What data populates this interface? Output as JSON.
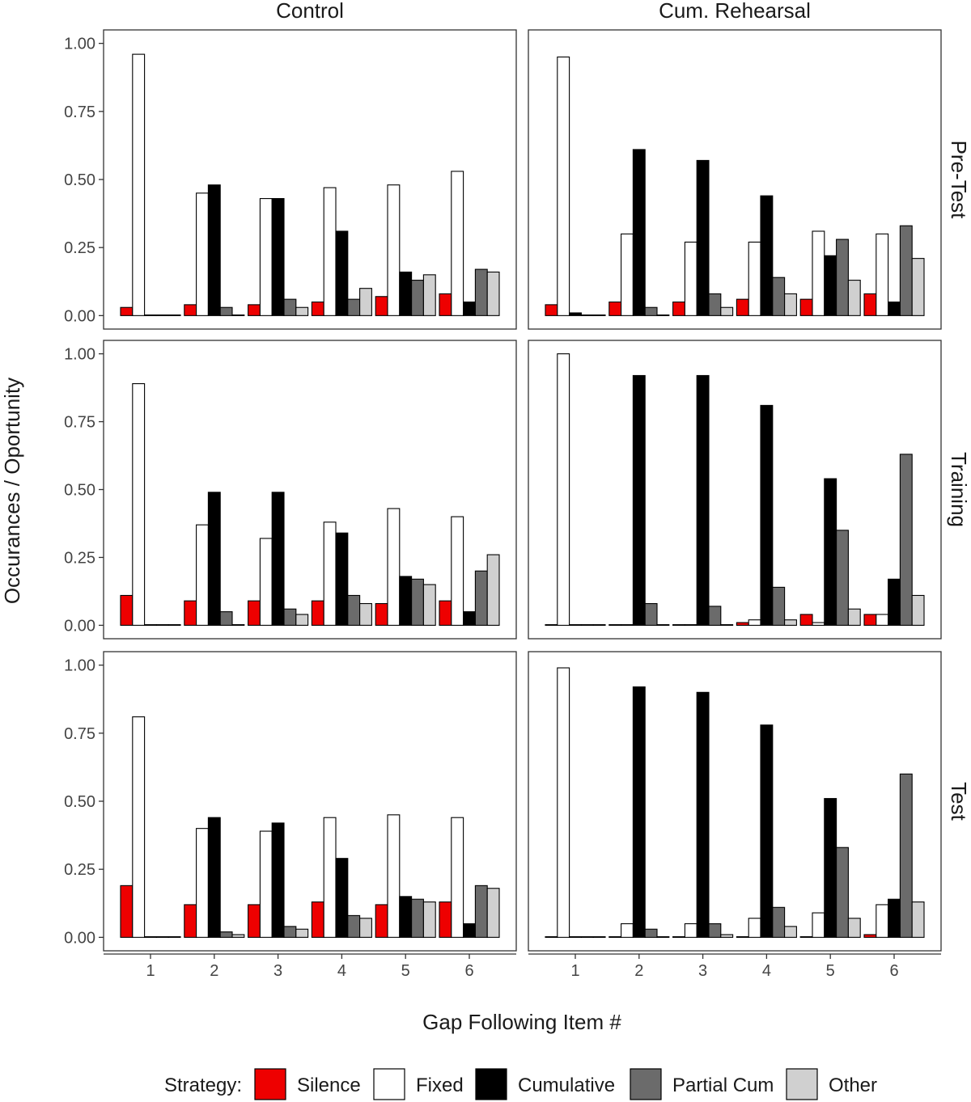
{
  "chart_data": {
    "type": "bar",
    "xlabel": "Gap Following Item #",
    "ylabel": "Occurances / Oportunity",
    "ylim": [
      0,
      1
    ],
    "y_ticks": [
      "0.00",
      "0.25",
      "0.50",
      "0.75",
      "1.00"
    ],
    "y_tick_values": [
      0,
      0.25,
      0.5,
      0.75,
      1.0
    ],
    "categories": [
      "1",
      "2",
      "3",
      "4",
      "5",
      "6"
    ],
    "columns": [
      "Control",
      "Cum. Rehearsal"
    ],
    "rows": [
      "Pre-Test",
      "Training",
      "Test"
    ],
    "legend": {
      "title": "Strategy:",
      "position": "bottom",
      "entries": [
        "Silence",
        "Fixed",
        "Cumulative",
        "Partial Cum",
        "Other"
      ]
    },
    "grid": false,
    "series_colors": {
      "Silence": "#ee0000",
      "Fixed": "#ffffff",
      "Cumulative": "#000000",
      "Partial Cum": "#6b6b6b",
      "Other": "#d0d0d0"
    },
    "panels": [
      {
        "column": "Control",
        "row": "Pre-Test",
        "series": [
          {
            "name": "Silence",
            "values": [
              0.03,
              0.04,
              0.04,
              0.05,
              0.07,
              0.08
            ]
          },
          {
            "name": "Fixed",
            "values": [
              0.96,
              0.45,
              0.43,
              0.47,
              0.48,
              0.53
            ]
          },
          {
            "name": "Cumulative",
            "values": [
              0.0,
              0.48,
              0.43,
              0.31,
              0.16,
              0.05
            ]
          },
          {
            "name": "Partial Cum",
            "values": [
              0.0,
              0.03,
              0.06,
              0.06,
              0.13,
              0.17
            ]
          },
          {
            "name": "Other",
            "values": [
              0.0,
              0.0,
              0.03,
              0.1,
              0.15,
              0.16
            ]
          }
        ]
      },
      {
        "column": "Cum. Rehearsal",
        "row": "Pre-Test",
        "series": [
          {
            "name": "Silence",
            "values": [
              0.04,
              0.05,
              0.05,
              0.06,
              0.06,
              0.08
            ]
          },
          {
            "name": "Fixed",
            "values": [
              0.95,
              0.3,
              0.27,
              0.27,
              0.31,
              0.3
            ]
          },
          {
            "name": "Cumulative",
            "values": [
              0.01,
              0.61,
              0.57,
              0.44,
              0.22,
              0.05
            ]
          },
          {
            "name": "Partial Cum",
            "values": [
              0.0,
              0.03,
              0.08,
              0.14,
              0.28,
              0.33
            ]
          },
          {
            "name": "Other",
            "values": [
              0.0,
              0.0,
              0.03,
              0.08,
              0.13,
              0.21
            ]
          }
        ]
      },
      {
        "column": "Control",
        "row": "Training",
        "series": [
          {
            "name": "Silence",
            "values": [
              0.11,
              0.09,
              0.09,
              0.09,
              0.08,
              0.09
            ]
          },
          {
            "name": "Fixed",
            "values": [
              0.89,
              0.37,
              0.32,
              0.38,
              0.43,
              0.4
            ]
          },
          {
            "name": "Cumulative",
            "values": [
              0.0,
              0.49,
              0.49,
              0.34,
              0.18,
              0.05
            ]
          },
          {
            "name": "Partial Cum",
            "values": [
              0.0,
              0.05,
              0.06,
              0.11,
              0.17,
              0.2
            ]
          },
          {
            "name": "Other",
            "values": [
              0.0,
              0.0,
              0.04,
              0.08,
              0.15,
              0.26
            ]
          }
        ]
      },
      {
        "column": "Cum. Rehearsal",
        "row": "Training",
        "series": [
          {
            "name": "Silence",
            "values": [
              0.0,
              0.0,
              0.0,
              0.01,
              0.04,
              0.04
            ]
          },
          {
            "name": "Fixed",
            "values": [
              1.0,
              0.0,
              0.0,
              0.02,
              0.01,
              0.04
            ]
          },
          {
            "name": "Cumulative",
            "values": [
              0.0,
              0.92,
              0.92,
              0.81,
              0.54,
              0.17
            ]
          },
          {
            "name": "Partial Cum",
            "values": [
              0.0,
              0.08,
              0.07,
              0.14,
              0.35,
              0.63
            ]
          },
          {
            "name": "Other",
            "values": [
              0.0,
              0.0,
              0.0,
              0.02,
              0.06,
              0.11
            ]
          }
        ]
      },
      {
        "column": "Control",
        "row": "Test",
        "series": [
          {
            "name": "Silence",
            "values": [
              0.19,
              0.12,
              0.12,
              0.13,
              0.12,
              0.13
            ]
          },
          {
            "name": "Fixed",
            "values": [
              0.81,
              0.4,
              0.39,
              0.44,
              0.45,
              0.44
            ]
          },
          {
            "name": "Cumulative",
            "values": [
              0.0,
              0.44,
              0.42,
              0.29,
              0.15,
              0.05
            ]
          },
          {
            "name": "Partial Cum",
            "values": [
              0.0,
              0.02,
              0.04,
              0.08,
              0.14,
              0.19
            ]
          },
          {
            "name": "Other",
            "values": [
              0.0,
              0.01,
              0.03,
              0.07,
              0.13,
              0.18
            ]
          }
        ]
      },
      {
        "column": "Cum. Rehearsal",
        "row": "Test",
        "series": [
          {
            "name": "Silence",
            "values": [
              0.0,
              0.0,
              0.0,
              0.0,
              0.0,
              0.01
            ]
          },
          {
            "name": "Fixed",
            "values": [
              0.99,
              0.05,
              0.05,
              0.07,
              0.09,
              0.12
            ]
          },
          {
            "name": "Cumulative",
            "values": [
              0.0,
              0.92,
              0.9,
              0.78,
              0.51,
              0.14
            ]
          },
          {
            "name": "Partial Cum",
            "values": [
              0.0,
              0.03,
              0.05,
              0.11,
              0.33,
              0.6
            ]
          },
          {
            "name": "Other",
            "values": [
              0.0,
              0.0,
              0.01,
              0.04,
              0.07,
              0.13
            ]
          }
        ]
      }
    ]
  }
}
